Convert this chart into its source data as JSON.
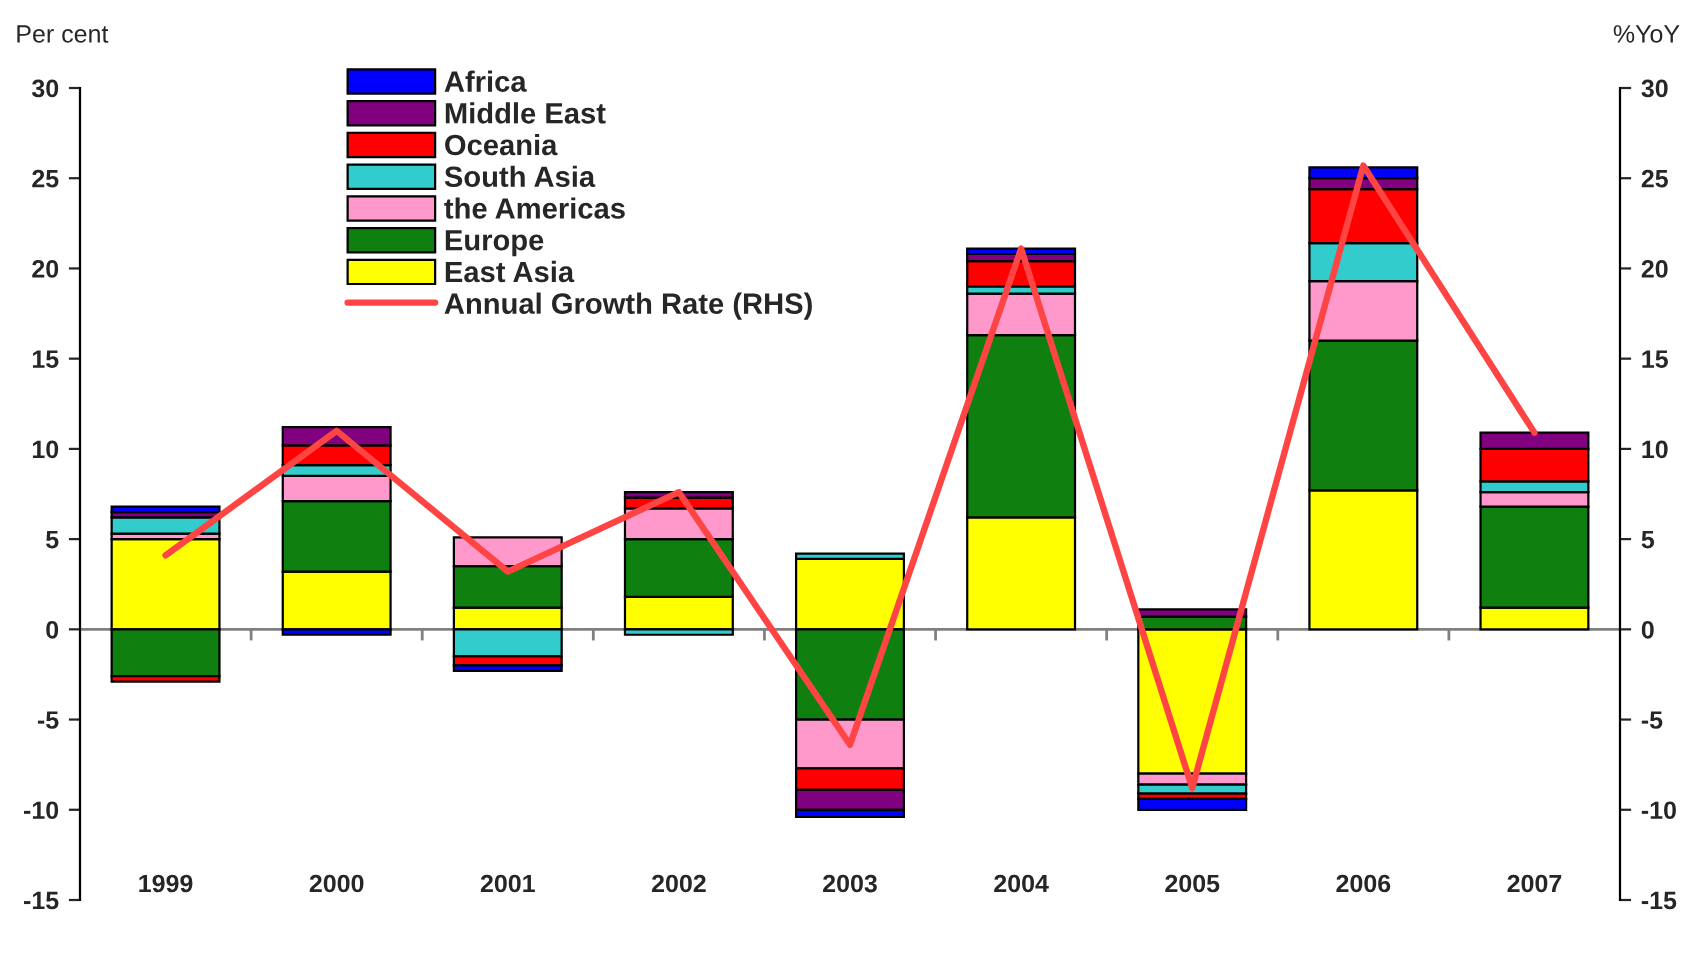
{
  "chart_data": {
    "type": "bar",
    "stacked": true,
    "categories": [
      "1999",
      "2000",
      "2001",
      "2002",
      "2003",
      "2004",
      "2005",
      "2006",
      "2007"
    ],
    "ylabel": "Per cent",
    "y2label": "%YoY",
    "ylim": [
      -15,
      30
    ],
    "yticks": [
      -15,
      -10,
      -5,
      0,
      5,
      10,
      15,
      20,
      25,
      30
    ],
    "y2lim": [
      -15,
      30
    ],
    "y2ticks": [
      -15,
      -10,
      -5,
      0,
      5,
      10,
      15,
      20,
      25,
      30
    ],
    "series": [
      {
        "name": "East Asia",
        "color": "#ffff00",
        "values": [
          5.0,
          3.2,
          1.2,
          1.8,
          3.9,
          6.2,
          -8.0,
          7.7,
          1.2
        ]
      },
      {
        "name": "Europe",
        "color": "#0f800f",
        "values": [
          -2.6,
          3.9,
          2.3,
          3.2,
          -5.0,
          10.1,
          0.7,
          8.3,
          5.6
        ]
      },
      {
        "name": "the Americas",
        "color": "#ff99cc",
        "values": [
          0.3,
          1.4,
          1.6,
          1.7,
          -2.7,
          2.3,
          -0.6,
          3.3,
          0.8
        ]
      },
      {
        "name": "South Asia",
        "color": "#33cccc",
        "values": [
          0.9,
          0.6,
          -1.5,
          -0.3,
          0.3,
          0.4,
          -0.5,
          2.1,
          0.6
        ]
      },
      {
        "name": "Oceania",
        "color": "#ff0000",
        "values": [
          -0.3,
          1.1,
          -0.5,
          0.6,
          -1.2,
          1.4,
          -0.3,
          3.0,
          1.8
        ]
      },
      {
        "name": "Middle East",
        "color": "#800080",
        "values": [
          0.3,
          1.0,
          null,
          0.3,
          -1.1,
          0.4,
          0.4,
          0.6,
          0.9
        ]
      },
      {
        "name": "Africa",
        "color": "#0000ff",
        "values": [
          0.3,
          -0.3,
          -0.3,
          null,
          -0.4,
          0.3,
          -0.6,
          0.6,
          null
        ]
      },
      {
        "name": "Annual Growth Rate (RHS)",
        "type": "line",
        "axis": "y2",
        "color": "#ff4444",
        "values": [
          4.1,
          11.0,
          3.2,
          7.6,
          -6.4,
          21.1,
          -8.8,
          25.7,
          10.9
        ]
      }
    ],
    "ref_lines": [
      {
        "axis": "y",
        "value": 0,
        "color": "#808080"
      }
    ],
    "legend": "top left",
    "grid": false
  }
}
